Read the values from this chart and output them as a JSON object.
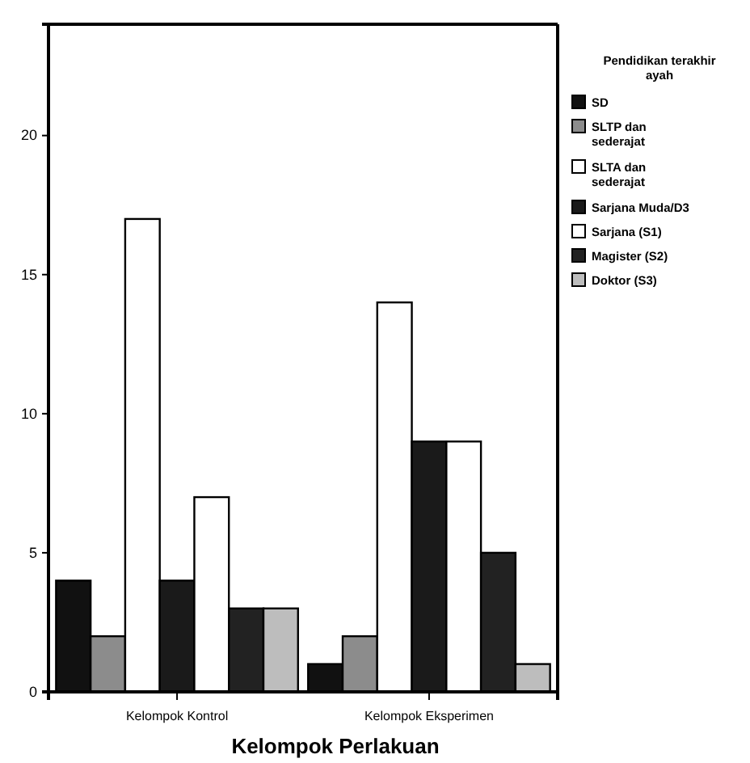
{
  "chart_data": {
    "type": "bar",
    "xlabel": "Kelompok Perlakuan",
    "legend_title": "Pendidikan terakhir ayah",
    "categories": [
      "Kelompok Kontrol",
      "Kelompok Eksperimen"
    ],
    "series": [
      {
        "name": "SD",
        "color": "#111111",
        "values": [
          4,
          1
        ]
      },
      {
        "name": "SLTP dan sederajat",
        "color": "#8c8c8c",
        "values": [
          2,
          2
        ]
      },
      {
        "name": "SLTA dan sederajat",
        "color": "#ffffff",
        "values": [
          17,
          14
        ]
      },
      {
        "name": "Sarjana Muda/D3",
        "color": "#1a1a1a",
        "values": [
          4,
          9
        ]
      },
      {
        "name": "Sarjana (S1)",
        "color": "#ffffff",
        "values": [
          7,
          9
        ]
      },
      {
        "name": "Magister (S2)",
        "color": "#222222",
        "values": [
          3,
          5
        ]
      },
      {
        "name": "Doktor (S3)",
        "color": "#bdbdbd",
        "values": [
          3,
          1
        ]
      }
    ],
    "ylim": [
      0,
      24
    ],
    "yticks": [
      0,
      5,
      10,
      15,
      20
    ],
    "legend": "right",
    "grid": false
  }
}
